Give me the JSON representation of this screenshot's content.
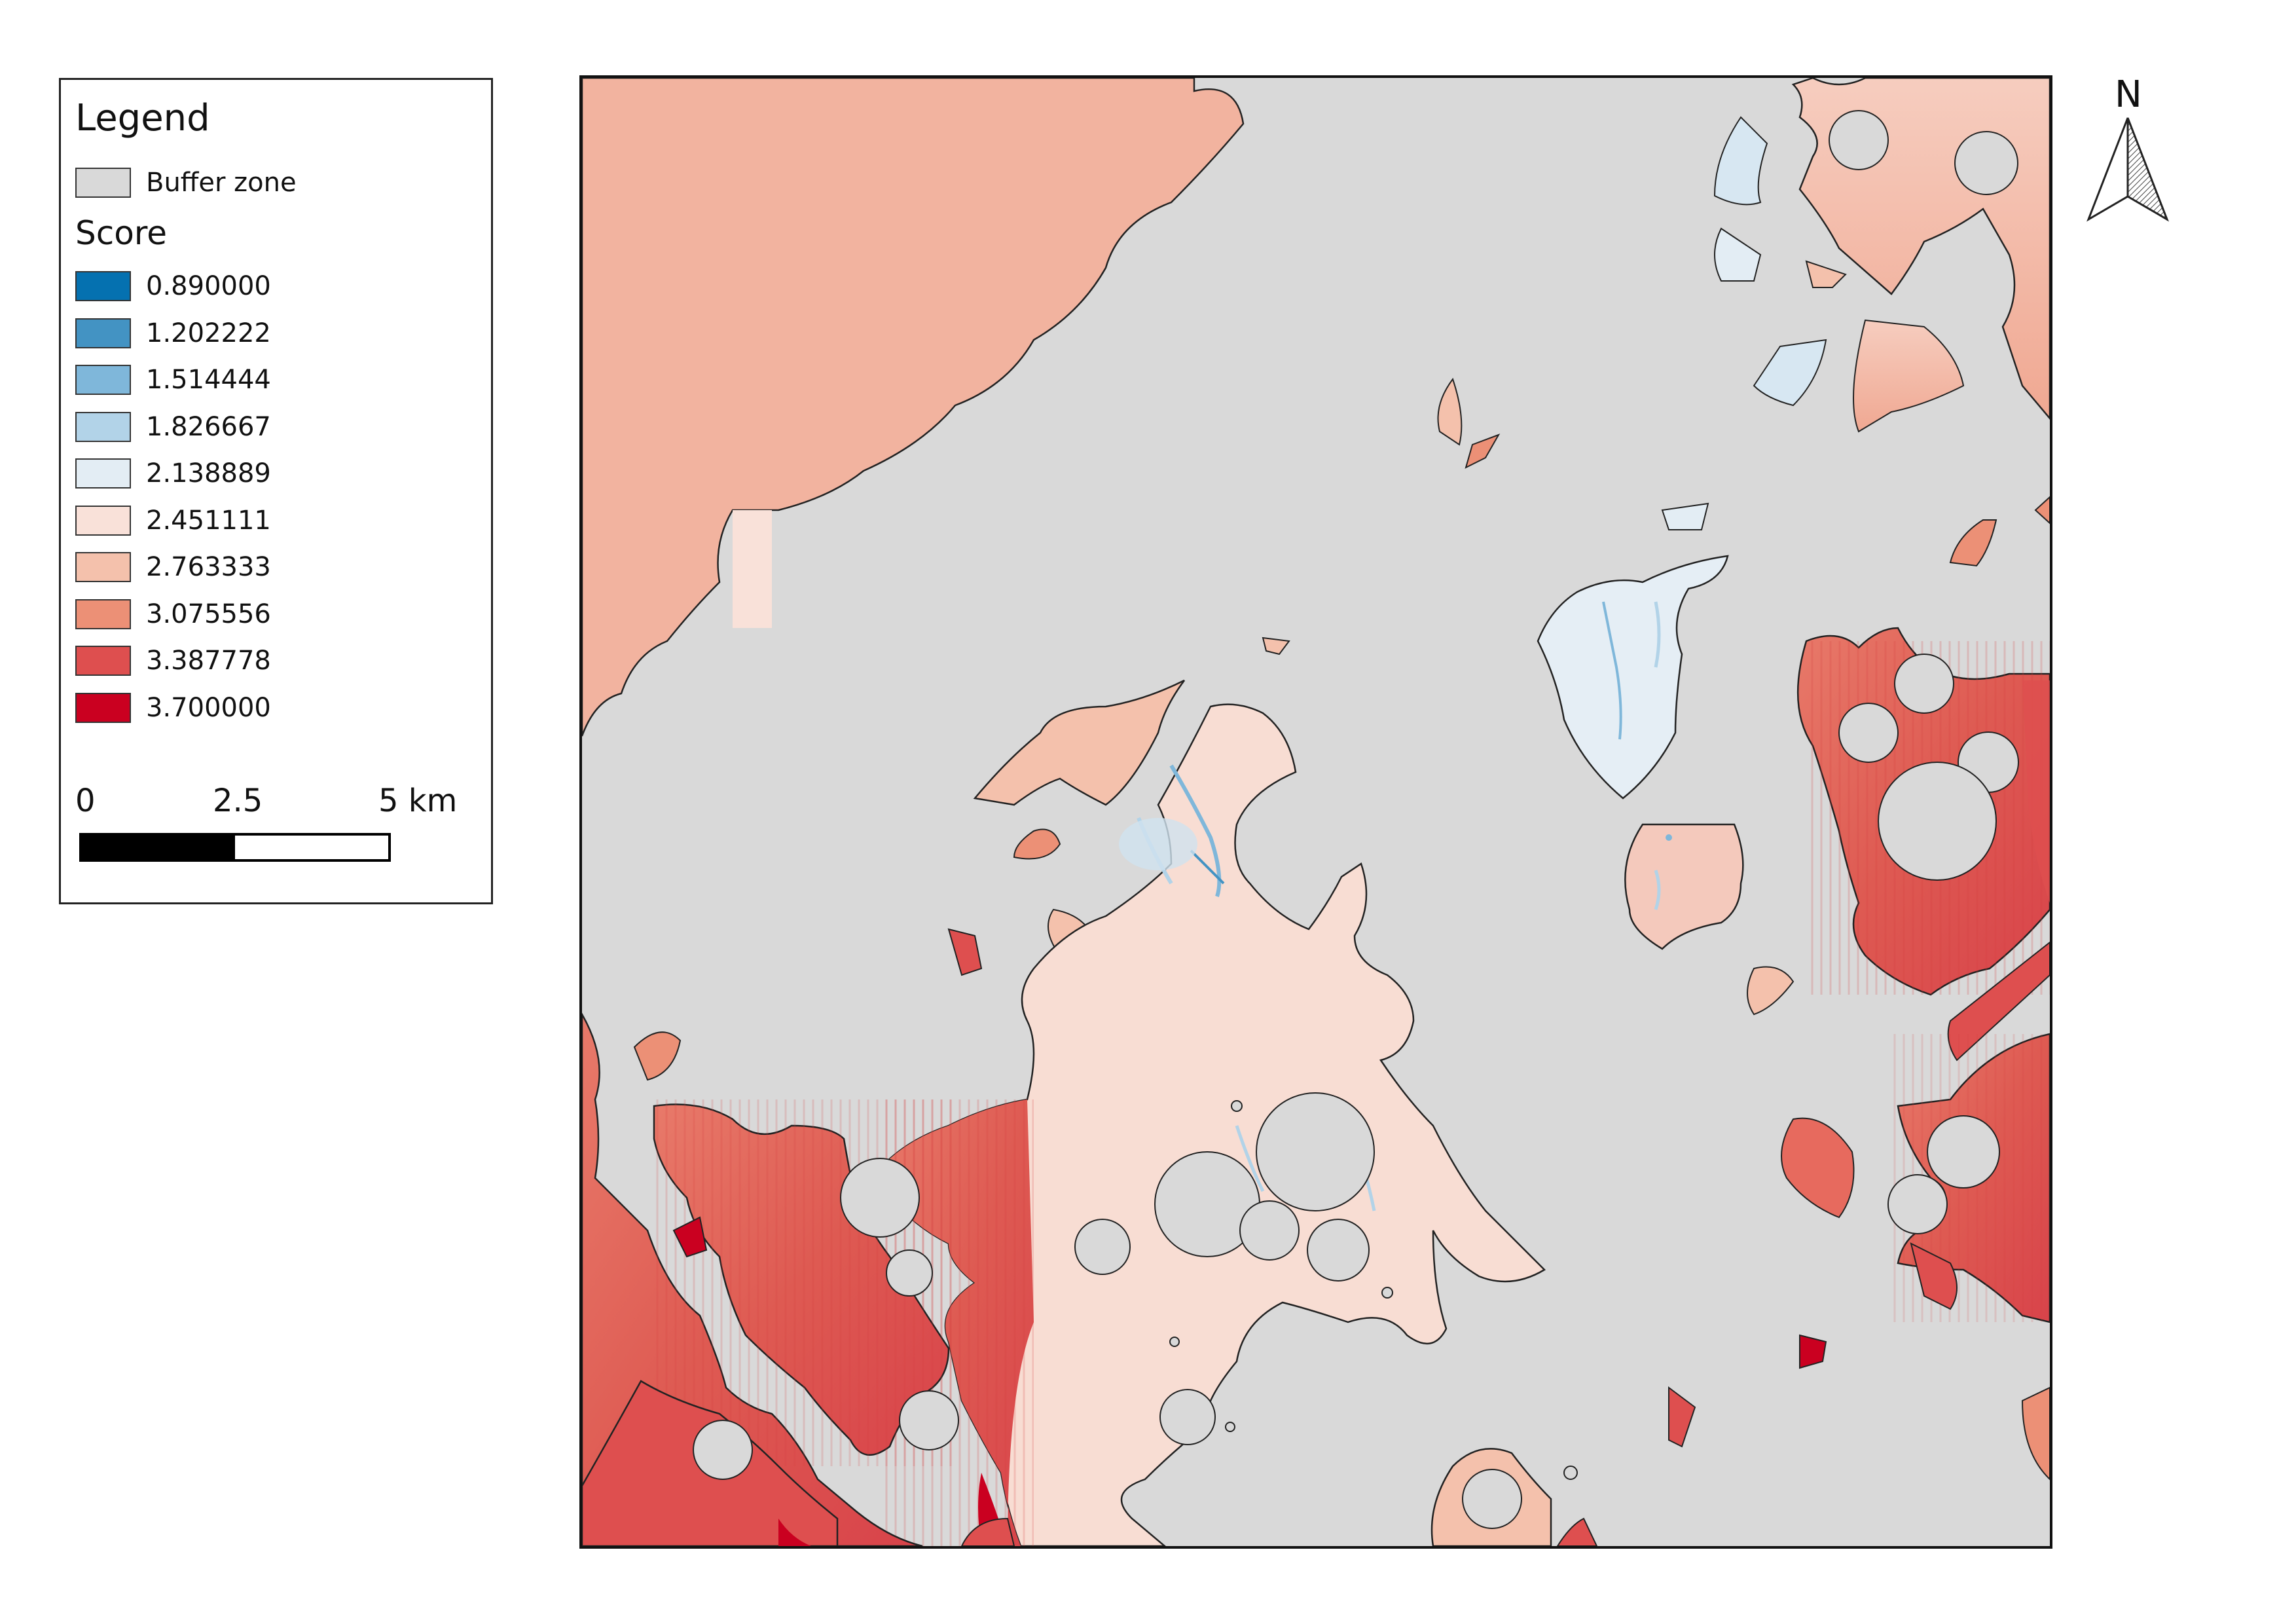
{
  "legend": {
    "title": "Legend",
    "buffer_label": "Buffer zone",
    "buffer_color": "#d9d9d9",
    "score_title": "Score",
    "classes": [
      {
        "label": "0.890000",
        "color": "#0571b0"
      },
      {
        "label": "1.202222",
        "color": "#4393c3"
      },
      {
        "label": "1.514444",
        "color": "#7fb7da"
      },
      {
        "label": "1.826667",
        "color": "#b2d3e8"
      },
      {
        "label": "2.138889",
        "color": "#e3edf4"
      },
      {
        "label": "2.451111",
        "color": "#f9e1d9"
      },
      {
        "label": "2.763333",
        "color": "#f4c1ac"
      },
      {
        "label": "3.075556",
        "color": "#ec9076"
      },
      {
        "label": "3.387778",
        "color": "#de4f4f"
      },
      {
        "label": "3.700000",
        "color": "#ca0020"
      }
    ]
  },
  "scale_bar": {
    "label_0": "0",
    "label_mid": "2.5",
    "label_end": "5 km"
  },
  "north_arrow": {
    "label": "N"
  }
}
